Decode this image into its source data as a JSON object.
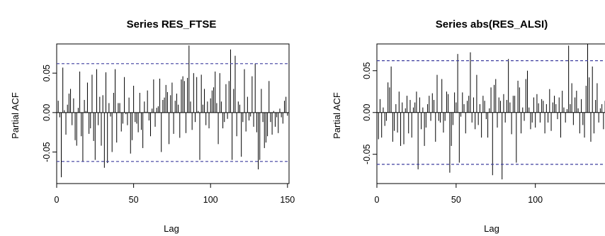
{
  "chart_data": [
    {
      "type": "bar",
      "title": "Series  RES_FTSE",
      "xlabel": "Lag",
      "ylabel": "Partial ACF",
      "xlim": [
        0,
        151
      ],
      "ylim": [
        -0.09,
        0.087
      ],
      "x_ticks": [
        0,
        50,
        100,
        150
      ],
      "y_ticks": [
        -0.05,
        0.0,
        0.05
      ],
      "y_tick_labels": [
        "-0.05",
        "0.00",
        "0.05"
      ],
      "confidence_bound": 0.062,
      "bar_color": "#000000",
      "bound_color": "#3f3f9f",
      "lags": [
        1,
        2,
        3,
        4,
        5,
        6,
        7,
        8,
        9,
        10,
        11,
        12,
        13,
        14,
        15,
        16,
        17,
        18,
        19,
        20,
        21,
        22,
        23,
        24,
        25,
        26,
        27,
        28,
        29,
        30,
        31,
        32,
        33,
        34,
        35,
        36,
        37,
        38,
        39,
        40,
        41,
        42,
        43,
        44,
        45,
        46,
        47,
        48,
        49,
        50,
        51,
        52,
        53,
        54,
        55,
        56,
        57,
        58,
        59,
        60,
        61,
        62,
        63,
        64,
        65,
        66,
        67,
        68,
        69,
        70,
        71,
        72,
        73,
        74,
        75,
        76,
        77,
        78,
        79,
        80,
        81,
        82,
        83,
        84,
        85,
        86,
        87,
        88,
        89,
        90,
        91,
        92,
        93,
        94,
        95,
        96,
        97,
        98,
        99,
        100,
        101,
        102,
        103,
        104,
        105,
        106,
        107,
        108,
        109,
        110,
        111,
        112,
        113,
        114,
        115,
        116,
        117,
        118,
        119,
        120,
        121,
        122,
        123,
        124,
        125,
        126,
        127,
        128,
        129,
        130,
        131,
        132,
        133,
        134,
        135,
        136,
        137,
        138,
        139,
        140,
        141,
        142,
        143,
        144,
        145,
        146,
        147,
        148,
        149,
        150
      ],
      "values": [
        0.015,
        -0.006,
        -0.082,
        0.057,
        0.003,
        -0.028,
        0.01,
        0.024,
        0.03,
        -0.016,
        0.018,
        -0.035,
        -0.042,
        0.006,
        0.052,
        -0.03,
        -0.062,
        0.016,
        0.002,
        0.038,
        -0.027,
        -0.02,
        0.048,
        -0.036,
        -0.06,
        0.055,
        -0.016,
        0.02,
        -0.042,
        0.022,
        -0.07,
        0.051,
        -0.064,
        0.012,
        -0.005,
        -0.05,
        0.025,
        0.055,
        -0.038,
        0.012,
        0.012,
        -0.024,
        -0.014,
        0.045,
        -0.002,
        -0.016,
        0.019,
        -0.052,
        -0.035,
        0.034,
        -0.012,
        -0.014,
        -0.025,
        0.025,
        -0.022,
        -0.045,
        0.014,
        0.001,
        0.028,
        -0.01,
        -0.03,
        0.005,
        0.042,
        -0.018,
        0.006,
        0.008,
        0.043,
        -0.05,
        0.016,
        0.019,
        0.035,
        0.026,
        -0.04,
        0.022,
        0.038,
        -0.027,
        0.015,
        0.024,
        0.01,
        -0.032,
        0.042,
        0.046,
        0.04,
        -0.026,
        0.044,
        0.085,
        0.014,
        -0.022,
        0.05,
        -0.012,
        0.045,
        0.002,
        -0.06,
        0.048,
        0.01,
        0.03,
        -0.016,
        0.014,
        -0.02,
        0.018,
        0.028,
        0.032,
        0.052,
        0.012,
        -0.04,
        0.05,
        0.014,
        -0.02,
        -0.012,
        0.036,
        -0.008,
        0.04,
        0.08,
        -0.06,
        0.03,
        0.072,
        -0.03,
        0.014,
        0.01,
        -0.056,
        -0.012,
        0.055,
        -0.024,
        0.02,
        -0.01,
        -0.005,
        0.046,
        -0.018,
        0.062,
        -0.025,
        -0.072,
        -0.06,
        0.03,
        -0.012,
        -0.045,
        -0.038,
        -0.03,
        0.04,
        -0.012,
        -0.028,
        0.002,
        -0.018,
        -0.006,
        -0.026,
        0.005,
        -0.006,
        -0.014,
        0.015,
        0.02,
        -0.004
      ]
    },
    {
      "type": "bar",
      "title": "Series  abs(RES_ALSI)",
      "xlabel": "Lag",
      "ylabel": "Partial ACF",
      "xlim": [
        0,
        152
      ],
      "ylim": [
        -0.085,
        0.082
      ],
      "x_ticks": [
        0,
        50,
        100,
        150
      ],
      "y_ticks": [
        -0.05,
        0.0,
        0.05
      ],
      "y_tick_labels": [
        "-0.05",
        "0.00",
        "0.05"
      ],
      "confidence_bound": 0.062,
      "bar_color": "#000000",
      "bound_color": "#3f3f9f",
      "lags": [
        1,
        2,
        3,
        4,
        5,
        6,
        7,
        8,
        9,
        10,
        11,
        12,
        13,
        14,
        15,
        16,
        17,
        18,
        19,
        20,
        21,
        22,
        23,
        24,
        25,
        26,
        27,
        28,
        29,
        30,
        31,
        32,
        33,
        34,
        35,
        36,
        37,
        38,
        39,
        40,
        41,
        42,
        43,
        44,
        45,
        46,
        47,
        48,
        49,
        50,
        51,
        52,
        53,
        54,
        55,
        56,
        57,
        58,
        59,
        60,
        61,
        62,
        63,
        64,
        65,
        66,
        67,
        68,
        69,
        70,
        71,
        72,
        73,
        74,
        75,
        76,
        77,
        78,
        79,
        80,
        81,
        82,
        83,
        84,
        85,
        86,
        87,
        88,
        89,
        90,
        91,
        92,
        93,
        94,
        95,
        96,
        97,
        98,
        99,
        100,
        101,
        102,
        103,
        104,
        105,
        106,
        107,
        108,
        109,
        110,
        111,
        112,
        113,
        114,
        115,
        116,
        117,
        118,
        119,
        120,
        121,
        122,
        123,
        124,
        125,
        126,
        127,
        128,
        129,
        130,
        131,
        132,
        133,
        134,
        135,
        136,
        137,
        138,
        139,
        140,
        141,
        142,
        143,
        144,
        145,
        146,
        147,
        148,
        149,
        150
      ],
      "values": [
        -0.032,
        0.016,
        -0.03,
        0.006,
        -0.016,
        -0.01,
        0.036,
        0.03,
        0.055,
        -0.035,
        -0.022,
        0.01,
        -0.024,
        0.025,
        -0.04,
        0.012,
        -0.038,
        0.005,
        0.02,
        -0.025,
        0.015,
        -0.03,
        0.006,
        0.012,
        0.025,
        -0.068,
        0.018,
        -0.02,
        0.006,
        -0.04,
        -0.018,
        0.01,
        0.02,
        -0.01,
        0.023,
        0.015,
        -0.035,
        0.045,
        -0.01,
        -0.012,
        0.04,
        -0.024,
        -0.01,
        0.025,
        0.022,
        -0.072,
        -0.04,
        -0.015,
        0.024,
        0.012,
        0.07,
        -0.06,
        -0.005,
        0.024,
        0.01,
        -0.025,
        0.014,
        0.02,
        0.072,
        -0.012,
        0.018,
        -0.02,
        0.045,
        -0.015,
        0.01,
        -0.03,
        0.02,
        0.014,
        -0.008,
        -0.03,
        0.005,
        0.03,
        -0.075,
        0.033,
        0.04,
        -0.018,
        0.018,
        0.014,
        -0.08,
        0.022,
        -0.012,
        0.015,
        0.064,
        0.012,
        -0.026,
        0.02,
        0.02,
        -0.06,
        0.038,
        0.03,
        -0.025,
        0.006,
        -0.01,
        0.04,
        0.05,
        0.006,
        -0.02,
        -0.012,
        0.018,
        -0.018,
        0.022,
        0.011,
        -0.012,
        0.016,
        0.014,
        -0.025,
        0.01,
        -0.012,
        0.028,
        -0.022,
        0.012,
        0.02,
        0.01,
        -0.008,
        0.018,
        -0.03,
        0.026,
        0.006,
        -0.012,
        0.004,
        0.08,
        0.01,
        0.035,
        -0.015,
        0.018,
        0.026,
        0.005,
        -0.025,
        0.016,
        -0.015,
        -0.03,
        0.032,
        0.082,
        0.042,
        -0.035,
        0.055,
        -0.025,
        0.015,
        0.035,
        -0.012,
        0.005,
        0.01,
        -0.02,
        0.014,
        -0.032,
        0.01,
        -0.018,
        0.03,
        -0.015,
        -0.012
      ]
    }
  ]
}
